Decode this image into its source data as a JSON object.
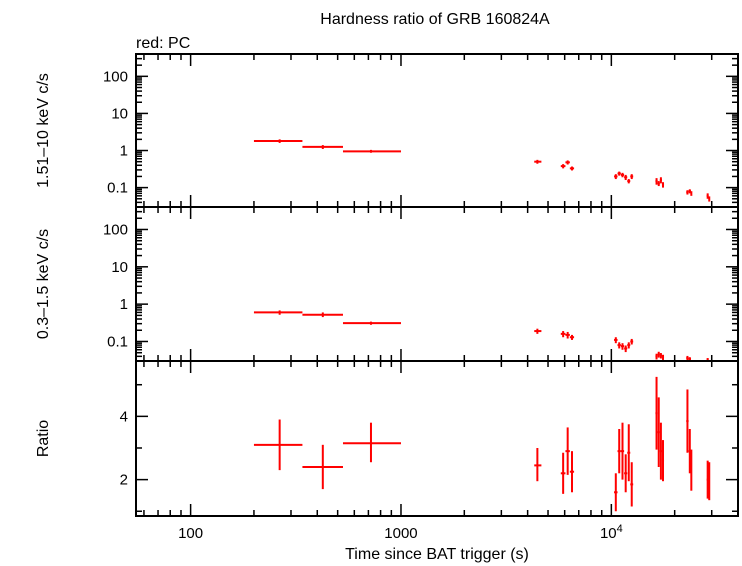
{
  "chart_data": {
    "type": "scatter",
    "title": "Hardness ratio of GRB 160824A",
    "subtitle": "red: PC",
    "xlabel": "Time since BAT trigger (s)",
    "xscale": "log",
    "xlim": [
      55,
      40000
    ],
    "x_tick_labels": [
      {
        "value": 100,
        "label": "100"
      },
      {
        "value": 1000,
        "label": "1000"
      },
      {
        "value": 10000,
        "label": "10",
        "sup": "4"
      }
    ],
    "series_color": "#ff0000",
    "panels": [
      {
        "id": "hard",
        "ylabel": "1.51–10 keV c/s",
        "yscale": "log",
        "ylim": [
          0.03,
          400
        ],
        "y_ticks": [
          {
            "value": 100,
            "label": "100"
          },
          {
            "value": 10,
            "label": "10"
          },
          {
            "value": 1,
            "label": "1"
          },
          {
            "value": 0.1,
            "label": "0.1"
          }
        ],
        "points": [
          {
            "x": 265,
            "xlo": 200,
            "xhi": 340,
            "y": 1.8,
            "ylo": 1.6,
            "yhi": 2.0
          },
          {
            "x": 425,
            "xlo": 340,
            "xhi": 530,
            "y": 1.25,
            "ylo": 1.1,
            "yhi": 1.4
          },
          {
            "x": 720,
            "xlo": 530,
            "xhi": 1000,
            "y": 0.95,
            "ylo": 0.87,
            "yhi": 1.04
          },
          {
            "x": 4450,
            "xlo": 4300,
            "xhi": 4650,
            "y": 0.5,
            "ylo": 0.44,
            "yhi": 0.56
          },
          {
            "x": 5900,
            "xlo": 5750,
            "xhi": 6050,
            "y": 0.38,
            "ylo": 0.33,
            "yhi": 0.43
          },
          {
            "x": 6200,
            "xlo": 6050,
            "xhi": 6350,
            "y": 0.48,
            "ylo": 0.42,
            "yhi": 0.54
          },
          {
            "x": 6500,
            "xlo": 6350,
            "xhi": 6650,
            "y": 0.33,
            "ylo": 0.29,
            "yhi": 0.37
          },
          {
            "x": 10500,
            "xlo": 10300,
            "xhi": 10700,
            "y": 0.2,
            "ylo": 0.17,
            "yhi": 0.23
          },
          {
            "x": 10900,
            "xlo": 10700,
            "xhi": 11100,
            "y": 0.24,
            "ylo": 0.21,
            "yhi": 0.27
          },
          {
            "x": 11300,
            "xlo": 11100,
            "xhi": 11500,
            "y": 0.22,
            "ylo": 0.19,
            "yhi": 0.25
          },
          {
            "x": 11700,
            "xlo": 11500,
            "xhi": 11900,
            "y": 0.19,
            "ylo": 0.16,
            "yhi": 0.22
          },
          {
            "x": 12100,
            "xlo": 11900,
            "xhi": 12300,
            "y": 0.15,
            "ylo": 0.13,
            "yhi": 0.17
          },
          {
            "x": 12500,
            "xlo": 12300,
            "xhi": 12700,
            "y": 0.2,
            "ylo": 0.17,
            "yhi": 0.23
          },
          {
            "x": 16400,
            "xlo": 16200,
            "xhi": 16600,
            "y": 0.15,
            "ylo": 0.12,
            "yhi": 0.18
          },
          {
            "x": 16800,
            "xlo": 16600,
            "xhi": 17000,
            "y": 0.13,
            "ylo": 0.11,
            "yhi": 0.15
          },
          {
            "x": 17200,
            "xlo": 17000,
            "xhi": 17400,
            "y": 0.16,
            "ylo": 0.13,
            "yhi": 0.19
          },
          {
            "x": 17600,
            "xlo": 17400,
            "xhi": 17800,
            "y": 0.12,
            "ylo": 0.1,
            "yhi": 0.14
          },
          {
            "x": 23000,
            "xlo": 22700,
            "xhi": 23300,
            "y": 0.075,
            "ylo": 0.065,
            "yhi": 0.085
          },
          {
            "x": 23600,
            "xlo": 23300,
            "xhi": 23900,
            "y": 0.08,
            "ylo": 0.07,
            "yhi": 0.09
          },
          {
            "x": 24000,
            "xlo": 23900,
            "xhi": 24100,
            "y": 0.07,
            "ylo": 0.06,
            "yhi": 0.08
          },
          {
            "x": 28700,
            "xlo": 28400,
            "xhi": 29000,
            "y": 0.06,
            "ylo": 0.05,
            "yhi": 0.07
          },
          {
            "x": 29200,
            "xlo": 29000,
            "xhi": 29400,
            "y": 0.05,
            "ylo": 0.042,
            "yhi": 0.058
          }
        ]
      },
      {
        "id": "soft",
        "ylabel": "0.3–1.5 keV c/s",
        "yscale": "log",
        "ylim": [
          0.03,
          400
        ],
        "y_ticks": [
          {
            "value": 100,
            "label": "100"
          },
          {
            "value": 10,
            "label": "10"
          },
          {
            "value": 1,
            "label": "1"
          },
          {
            "value": 0.1,
            "label": "0.1"
          }
        ],
        "points": [
          {
            "x": 265,
            "xlo": 200,
            "xhi": 340,
            "y": 0.6,
            "ylo": 0.52,
            "yhi": 0.68
          },
          {
            "x": 425,
            "xlo": 340,
            "xhi": 530,
            "y": 0.52,
            "ylo": 0.45,
            "yhi": 0.6
          },
          {
            "x": 720,
            "xlo": 530,
            "xhi": 1000,
            "y": 0.31,
            "ylo": 0.28,
            "yhi": 0.34
          },
          {
            "x": 4450,
            "xlo": 4300,
            "xhi": 4650,
            "y": 0.19,
            "ylo": 0.16,
            "yhi": 0.22
          },
          {
            "x": 5900,
            "xlo": 5750,
            "xhi": 6050,
            "y": 0.16,
            "ylo": 0.13,
            "yhi": 0.19
          },
          {
            "x": 6200,
            "xlo": 6050,
            "xhi": 6350,
            "y": 0.15,
            "ylo": 0.12,
            "yhi": 0.18
          },
          {
            "x": 6500,
            "xlo": 6350,
            "xhi": 6650,
            "y": 0.13,
            "ylo": 0.11,
            "yhi": 0.15
          },
          {
            "x": 10500,
            "xlo": 10300,
            "xhi": 10700,
            "y": 0.11,
            "ylo": 0.09,
            "yhi": 0.13
          },
          {
            "x": 10900,
            "xlo": 10700,
            "xhi": 11100,
            "y": 0.08,
            "ylo": 0.065,
            "yhi": 0.095
          },
          {
            "x": 11300,
            "xlo": 11100,
            "xhi": 11500,
            "y": 0.075,
            "ylo": 0.06,
            "yhi": 0.09
          },
          {
            "x": 11700,
            "xlo": 11500,
            "xhi": 11900,
            "y": 0.065,
            "ylo": 0.052,
            "yhi": 0.078
          },
          {
            "x": 12100,
            "xlo": 11900,
            "xhi": 12300,
            "y": 0.08,
            "ylo": 0.065,
            "yhi": 0.095
          },
          {
            "x": 12500,
            "xlo": 12300,
            "xhi": 12700,
            "y": 0.1,
            "ylo": 0.083,
            "yhi": 0.117
          },
          {
            "x": 16400,
            "xlo": 16200,
            "xhi": 16600,
            "y": 0.04,
            "ylo": 0.033,
            "yhi": 0.047
          },
          {
            "x": 16800,
            "xlo": 16600,
            "xhi": 17000,
            "y": 0.045,
            "ylo": 0.037,
            "yhi": 0.053
          },
          {
            "x": 17200,
            "xlo": 17000,
            "xhi": 17400,
            "y": 0.042,
            "ylo": 0.035,
            "yhi": 0.049
          },
          {
            "x": 17600,
            "xlo": 17400,
            "xhi": 17800,
            "y": 0.038,
            "ylo": 0.032,
            "yhi": 0.044
          },
          {
            "x": 23000,
            "xlo": 22700,
            "xhi": 23300,
            "y": 0.036,
            "ylo": 0.031,
            "yhi": 0.041
          },
          {
            "x": 23600,
            "xlo": 23300,
            "xhi": 23900,
            "y": 0.034,
            "ylo": 0.031,
            "yhi": 0.038
          },
          {
            "x": 28700,
            "xlo": 28400,
            "xhi": 29000,
            "y": 0.033,
            "ylo": 0.031,
            "yhi": 0.036
          }
        ]
      },
      {
        "id": "ratio",
        "ylabel": "Ratio",
        "yscale": "linear",
        "ylim": [
          0.85,
          5.75
        ],
        "y_ticks": [
          {
            "value": 4,
            "label": "4"
          },
          {
            "value": 2,
            "label": "2"
          }
        ],
        "points": [
          {
            "x": 265,
            "xlo": 200,
            "xhi": 340,
            "y": 3.1,
            "ylo": 2.3,
            "yhi": 3.9
          },
          {
            "x": 425,
            "xlo": 340,
            "xhi": 530,
            "y": 2.4,
            "ylo": 1.7,
            "yhi": 3.1
          },
          {
            "x": 720,
            "xlo": 530,
            "xhi": 1000,
            "y": 3.15,
            "ylo": 2.55,
            "yhi": 3.8
          },
          {
            "x": 4450,
            "xlo": 4300,
            "xhi": 4650,
            "y": 2.45,
            "ylo": 1.95,
            "yhi": 3.0
          },
          {
            "x": 5900,
            "xlo": 5750,
            "xhi": 6050,
            "y": 2.2,
            "ylo": 1.55,
            "yhi": 2.85
          },
          {
            "x": 6200,
            "xlo": 6050,
            "xhi": 6350,
            "y": 2.9,
            "ylo": 2.15,
            "yhi": 3.65
          },
          {
            "x": 6500,
            "xlo": 6350,
            "xhi": 6650,
            "y": 2.25,
            "ylo": 1.6,
            "yhi": 2.9
          },
          {
            "x": 10500,
            "xlo": 10300,
            "xhi": 10700,
            "y": 1.6,
            "ylo": 1.0,
            "yhi": 2.2
          },
          {
            "x": 10900,
            "xlo": 10700,
            "xhi": 11100,
            "y": 2.9,
            "ylo": 2.2,
            "yhi": 3.6
          },
          {
            "x": 11300,
            "xlo": 11100,
            "xhi": 11500,
            "y": 2.9,
            "ylo": 2.0,
            "yhi": 3.8
          },
          {
            "x": 11700,
            "xlo": 11500,
            "xhi": 11900,
            "y": 2.2,
            "ylo": 1.6,
            "yhi": 2.8
          },
          {
            "x": 12100,
            "xlo": 11900,
            "xhi": 12300,
            "y": 2.85,
            "ylo": 1.95,
            "yhi": 3.75
          },
          {
            "x": 12500,
            "xlo": 12300,
            "xhi": 12700,
            "y": 1.85,
            "ylo": 1.15,
            "yhi": 2.55
          },
          {
            "x": 16400,
            "xlo": 16200,
            "xhi": 16600,
            "y": 4.1,
            "ylo": 2.95,
            "yhi": 5.25
          },
          {
            "x": 16800,
            "xlo": 16600,
            "xhi": 17000,
            "y": 3.5,
            "ylo": 2.4,
            "yhi": 4.6
          },
          {
            "x": 17200,
            "xlo": 17000,
            "xhi": 17400,
            "y": 2.9,
            "ylo": 2.0,
            "yhi": 3.8
          },
          {
            "x": 17600,
            "xlo": 17400,
            "xhi": 17800,
            "y": 2.6,
            "ylo": 1.95,
            "yhi": 3.25
          },
          {
            "x": 23000,
            "xlo": 22700,
            "xhi": 23300,
            "y": 3.85,
            "ylo": 2.85,
            "yhi": 4.85
          },
          {
            "x": 23600,
            "xlo": 23300,
            "xhi": 23900,
            "y": 2.9,
            "ylo": 2.2,
            "yhi": 3.6
          },
          {
            "x": 24000,
            "xlo": 23900,
            "xhi": 24100,
            "y": 2.3,
            "ylo": 1.65,
            "yhi": 2.95
          },
          {
            "x": 28700,
            "xlo": 28400,
            "xhi": 29000,
            "y": 2.0,
            "ylo": 1.4,
            "yhi": 2.6
          },
          {
            "x": 29200,
            "xlo": 29000,
            "xhi": 29400,
            "y": 1.95,
            "ylo": 1.35,
            "yhi": 2.55
          }
        ]
      }
    ]
  }
}
